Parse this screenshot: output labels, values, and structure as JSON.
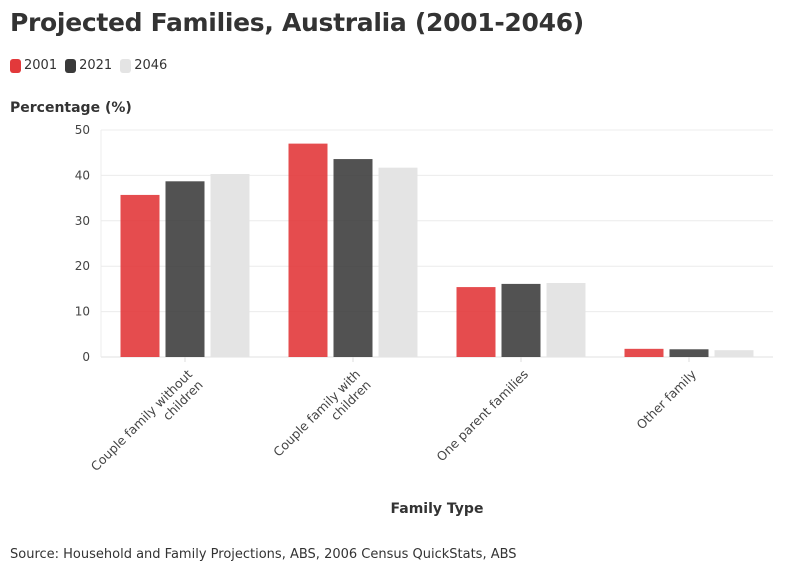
{
  "chart_data": {
    "type": "bar",
    "title": "Projected Families, Australia (2001-2046)",
    "ylabel": "Percentage (%)",
    "xlabel": "Family Type",
    "categories": [
      "Couple family without children",
      "Couple family with children",
      "One parent families",
      "Other family"
    ],
    "series": [
      {
        "name": "2001",
        "color": "#e2393b",
        "values": [
          35.7,
          47.0,
          15.4,
          1.8
        ]
      },
      {
        "name": "2021",
        "color": "#3a3a3a",
        "values": [
          38.7,
          43.6,
          16.1,
          1.7
        ]
      },
      {
        "name": "2046",
        "color": "#e4e4e4",
        "values": [
          40.3,
          41.7,
          16.3,
          1.5
        ]
      }
    ],
    "ylim": [
      0,
      50
    ],
    "yticks": [
      0,
      10,
      20,
      30,
      40,
      50
    ],
    "grid": true,
    "legend": "top-left"
  },
  "source": "Source: Household and Family Projections, ABS, 2006 Census QuickStats, ABS"
}
